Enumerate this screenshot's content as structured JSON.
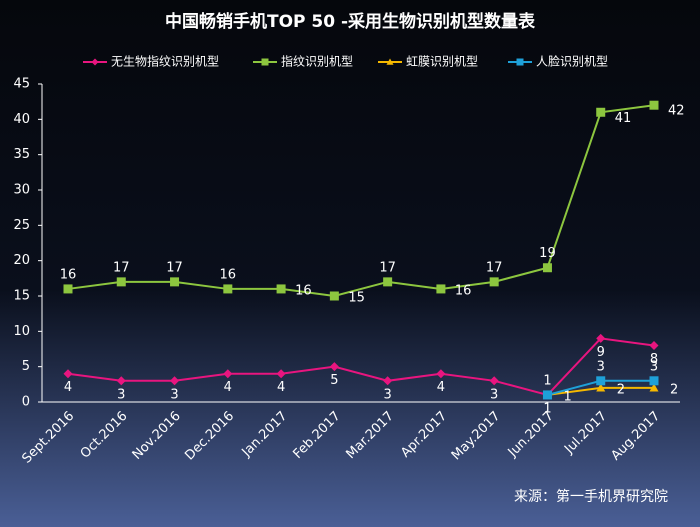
{
  "chart_data": {
    "type": "line",
    "title": "中国畅销手机TOP 50 -采用生物识别机型数量表",
    "source": "来源：第一手机界研究院",
    "categories": [
      "Sept.2016",
      "Oct.2016",
      "Nov.2016",
      "Dec.2016",
      "Jan.2017",
      "Feb.2017",
      "Mar.2017",
      "Apr.2017",
      "May.2017",
      "Jun.2017",
      "Jul.2017",
      "Aug.2017"
    ],
    "series": [
      {
        "name": "无生物指纹识别机型",
        "color": "#e8157f",
        "marker": "diamond",
        "values": [
          4,
          3,
          3,
          4,
          4,
          5,
          3,
          4,
          3,
          1,
          9,
          8
        ]
      },
      {
        "name": "指纹识别机型",
        "color": "#8dc63f",
        "marker": "square",
        "values": [
          16,
          17,
          17,
          16,
          16,
          15,
          17,
          16,
          17,
          19,
          41,
          42
        ]
      },
      {
        "name": "虹膜识别机型",
        "color": "#f5b800",
        "marker": "triangle",
        "values": [
          null,
          null,
          null,
          null,
          null,
          null,
          null,
          null,
          null,
          1,
          2,
          2
        ]
      },
      {
        "name": "人脸识别机型",
        "color": "#1ea0d8",
        "marker": "square",
        "values": [
          null,
          null,
          null,
          null,
          null,
          null,
          null,
          null,
          null,
          1,
          3,
          3
        ]
      }
    ],
    "ylim": [
      0,
      45
    ],
    "yticks": [
      0,
      5,
      10,
      15,
      20,
      25,
      30,
      35,
      40,
      45
    ],
    "grid": false,
    "legend": "top"
  }
}
